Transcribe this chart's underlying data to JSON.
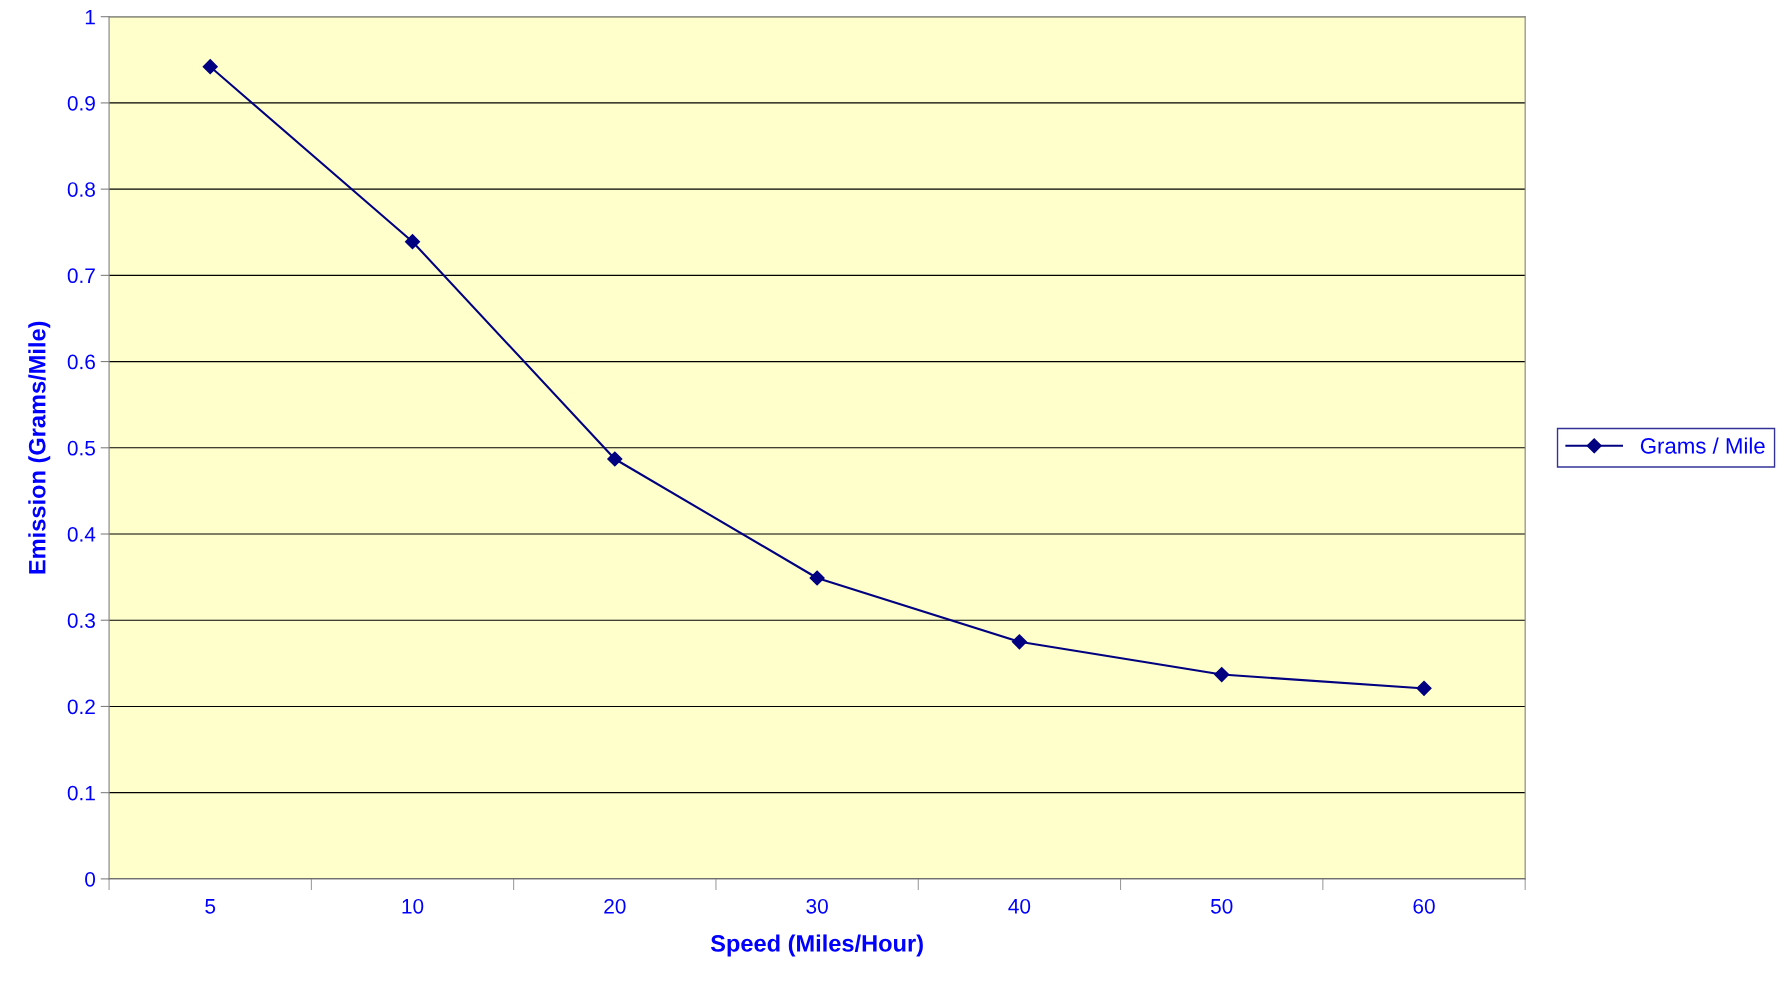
{
  "chart_data": {
    "type": "line",
    "xlabel": "Speed (Miles/Hour)",
    "ylabel": "Emission (Grams/Mile)",
    "categories": [
      "5",
      "10",
      "20",
      "30",
      "40",
      "50",
      "60"
    ],
    "series": [
      {
        "name": "Grams / Mile",
        "color": "#000080",
        "values": [
          0.942,
          0.739,
          0.487,
          0.349,
          0.275,
          0.237,
          0.221
        ]
      }
    ],
    "ylim": [
      0,
      1
    ],
    "yticks": [
      0,
      0.1,
      0.2,
      0.3,
      0.4,
      0.5,
      0.6,
      0.7,
      0.8,
      0.9,
      1
    ],
    "grid": "y",
    "legend": "right",
    "marker": "diamond",
    "line_style": "solid"
  }
}
